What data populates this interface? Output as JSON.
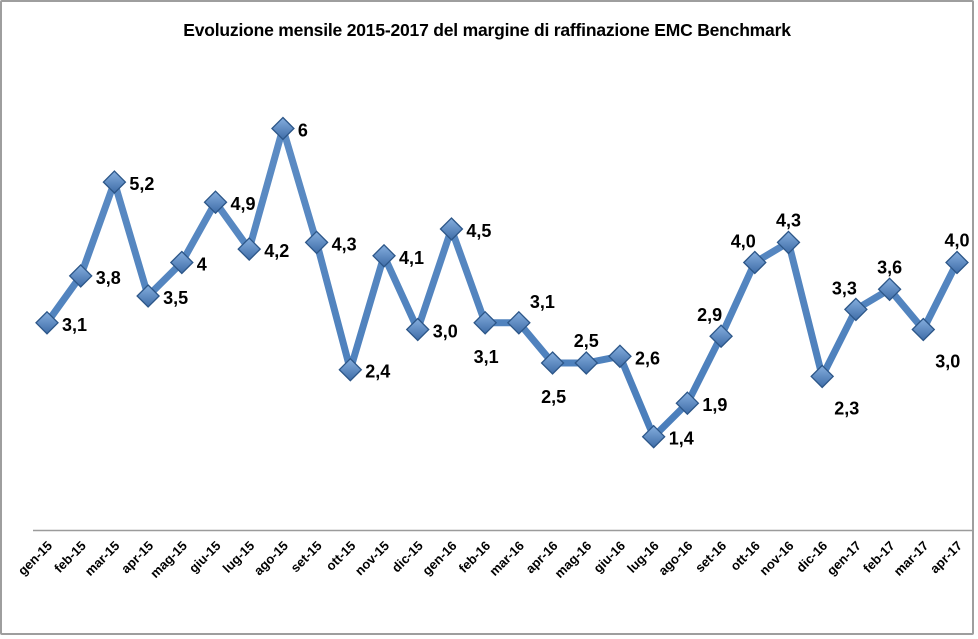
{
  "frame": {
    "background_color": "#ffffff",
    "border_color": "#9e9e9e"
  },
  "chart_data": {
    "type": "line",
    "title": "Evoluzione mensile 2015-2017 del margine di raffinazione EMC Benchmark",
    "xlabel": "",
    "ylabel": "",
    "grid": false,
    "legend_position": "none",
    "ylim": [
      0,
      6.5
    ],
    "tick_label_rotation_deg": 45,
    "categories": [
      "gen-15",
      "feb-15",
      "mar-15",
      "apr-15",
      "mag-15",
      "giu-15",
      "lug-15",
      "ago-15",
      "set-15",
      "ott-15",
      "nov-15",
      "dic-15",
      "gen-16",
      "feb-16",
      "mar-16",
      "apr-16",
      "mag-16",
      "giu-16",
      "lug-16",
      "ago-16",
      "set-16",
      "ott-16",
      "nov-16",
      "dic-16",
      "gen-17",
      "feb-17",
      "mar-17",
      "apr-17"
    ],
    "series": [
      {
        "name": "margine di raffinazione EMC Benchmark",
        "values": [
          3.1,
          3.8,
          5.2,
          3.5,
          4,
          4.9,
          4.2,
          6,
          4.3,
          2.4,
          4.1,
          3.0,
          4.5,
          3.1,
          3.1,
          2.5,
          2.5,
          2.6,
          1.4,
          1.9,
          2.9,
          4.0,
          4.3,
          2.3,
          3.3,
          3.6,
          3.0,
          4.0
        ],
        "point_labels": [
          "3,1",
          "3,8",
          "5,2",
          "3,5",
          "4",
          "4,9",
          "4,2",
          "6",
          "4,3",
          "2,4",
          "4,1",
          "3,0",
          "4,5",
          "3,1",
          "3,1",
          "2,5",
          "2,5",
          "2,6",
          "1,4",
          "1,9",
          "2,9",
          "4,0",
          "4,3",
          "2,3",
          "3,3",
          "3,6",
          "3,0",
          "4,0"
        ],
        "label_placements": [
          "right",
          "right",
          "right",
          "right",
          "right",
          "right",
          "right",
          "right",
          "right",
          "right",
          "right",
          "right",
          "right",
          "below",
          "above-right",
          "below",
          "above",
          "right",
          "right",
          "right",
          "above-left",
          "above-left",
          "above",
          "below-right",
          "above-left",
          "above",
          "below-right",
          "above"
        ]
      }
    ],
    "colors": {
      "line": "#4a7ebb",
      "marker_fill_top": "#85aede",
      "marker_fill_bottom": "#3e6ca7",
      "marker_border": "#2c5688",
      "data_label": "#000000",
      "axis_line": "#9b9b9b",
      "tick_label": "#000000",
      "title": "#000000"
    }
  }
}
